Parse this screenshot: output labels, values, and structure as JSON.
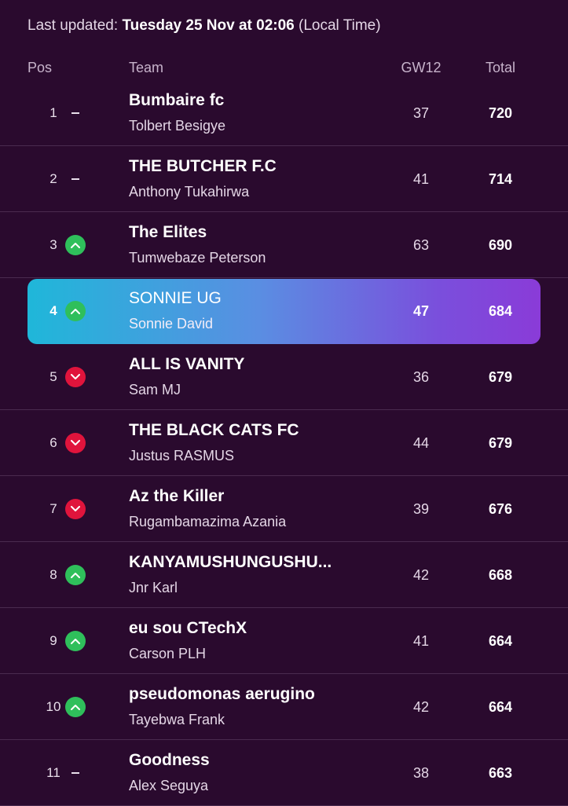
{
  "header": {
    "updated_prefix": "Last updated:",
    "updated_date": "Tuesday 25 Nov at 02:06",
    "updated_suffix": "(Local Time)"
  },
  "columns": {
    "pos": "Pos",
    "team": "Team",
    "gw": "GW12",
    "total": "Total"
  },
  "rows": [
    {
      "pos": "1",
      "trend": "same",
      "team": "Bumbaire fc",
      "manager": "Tolbert Besigye",
      "gw": "37",
      "total": "720"
    },
    {
      "pos": "2",
      "trend": "same",
      "team": "THE BUTCHER F.C",
      "manager": "Anthony Tukahirwa",
      "gw": "41",
      "total": "714"
    },
    {
      "pos": "3",
      "trend": "up",
      "team": "The Elites",
      "manager": "Tumwebaze Peterson",
      "gw": "63",
      "total": "690"
    },
    {
      "pos": "4",
      "trend": "up",
      "team": "SONNIE UG",
      "manager": "Sonnie David",
      "gw": "47",
      "total": "684",
      "highlight": true
    },
    {
      "pos": "5",
      "trend": "down",
      "team": "ALL IS VANITY",
      "manager": "Sam MJ",
      "gw": "36",
      "total": "679"
    },
    {
      "pos": "6",
      "trend": "down",
      "team": "THE BLACK CATS FC",
      "manager": "Justus RASMUS",
      "gw": "44",
      "total": "679"
    },
    {
      "pos": "7",
      "trend": "down",
      "team": "Az the Killer",
      "manager": "Rugambamazima Azania",
      "gw": "39",
      "total": "676"
    },
    {
      "pos": "8",
      "trend": "up",
      "team": "KANYAMUSHUNGUSHU...",
      "manager": "Jnr Karl",
      "gw": "42",
      "total": "668"
    },
    {
      "pos": "9",
      "trend": "up",
      "team": "eu sou CTechX",
      "manager": "Carson PLH",
      "gw": "41",
      "total": "664"
    },
    {
      "pos": "10",
      "trend": "up",
      "team": "pseudomonas aerugino",
      "manager": "Tayebwa Frank",
      "gw": "42",
      "total": "664"
    },
    {
      "pos": "11",
      "trend": "same",
      "team": "Goodness",
      "manager": "Alex Seguya",
      "gw": "38",
      "total": "663"
    }
  ]
}
